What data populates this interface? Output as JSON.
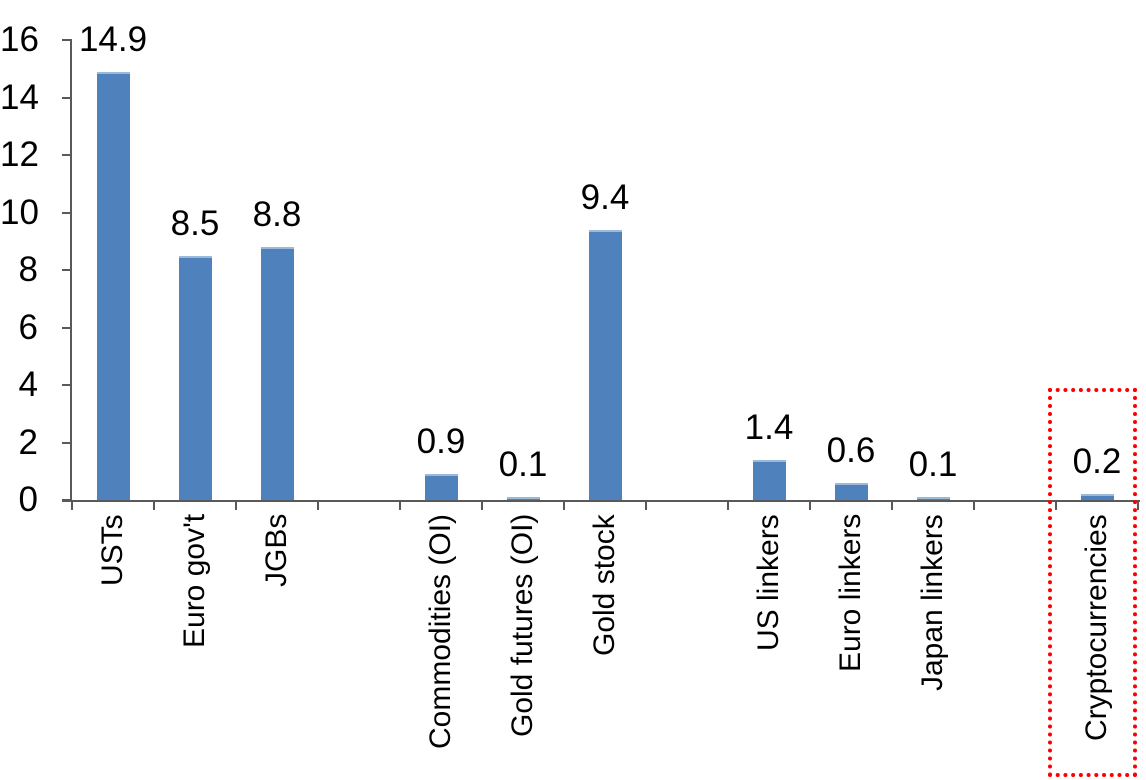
{
  "chart_data": {
    "type": "bar",
    "title": "",
    "xlabel": "",
    "ylabel": "",
    "categories": [
      "USTs",
      "Euro gov't",
      "JGBs",
      "Commodities (OI)",
      "Gold futures (OI)",
      "Gold stock",
      "US linkers",
      "Euro linkers",
      "Japan linkers",
      "Cryptocurrencies"
    ],
    "values": [
      14.9,
      8.5,
      8.8,
      0.9,
      0.1,
      9.4,
      1.4,
      0.6,
      0.1,
      0.2
    ],
    "labels": [
      "14.9",
      "8.5",
      "8.8",
      "0.9",
      "0.1",
      "9.4",
      "1.4",
      "0.6",
      "0.1",
      "0.2"
    ],
    "slot_indices": [
      0,
      1,
      2,
      4,
      5,
      6,
      8,
      9,
      10,
      12
    ],
    "slot_count": 13,
    "yticks": [
      "0",
      "2",
      "4",
      "6",
      "8",
      "10",
      "12",
      "14",
      "16"
    ],
    "ytick_values": [
      0,
      2,
      4,
      6,
      8,
      10,
      12,
      14,
      16
    ],
    "ylim": [
      0,
      16
    ],
    "grid": false,
    "legend": false,
    "bar_color": "#4F81BD",
    "bar_edge_color": "#9BB9D9",
    "axis_color": "#595959",
    "text_color": "#000000",
    "highlight": {
      "target": "Cryptocurrencies",
      "style": "dotted-box",
      "color": "#FF0000"
    }
  }
}
